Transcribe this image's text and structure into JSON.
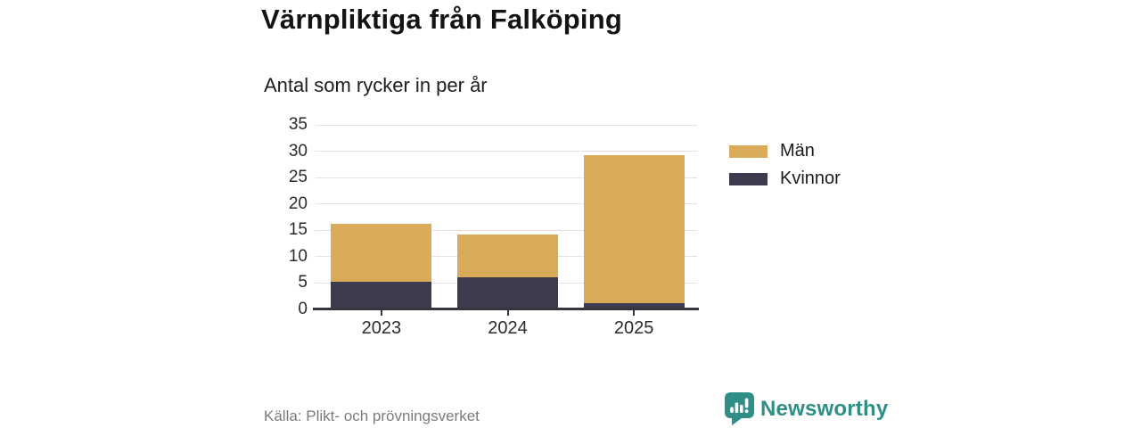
{
  "header": {
    "title": "Värnpliktiga från Falköping",
    "subtitle": "Antal som rycker in per år"
  },
  "footer": {
    "source": "Källa: Plikt- och prövningsverket",
    "brand_name": "Newsworthy",
    "brand_icon": "bar-chart-speech-bubble-icon"
  },
  "colors": {
    "men": "#D9AB58",
    "women": "#3D3C4E",
    "brand_teal": "#2F8E86",
    "gridline": "#E2E2E2",
    "axis": "#35343F",
    "text_dark": "#2B2B2B",
    "text_muted": "#7B7B7B"
  },
  "chart_data": {
    "type": "bar",
    "stacked": true,
    "title": "Värnpliktiga från Falköping",
    "subtitle": "Antal som rycker in per år",
    "categories": [
      "2023",
      "2024",
      "2025"
    ],
    "series": [
      {
        "name": "Kvinnor",
        "color": "#3D3C4E",
        "values": [
          5,
          6,
          1
        ]
      },
      {
        "name": "Män",
        "color": "#D9AB58",
        "values": [
          11,
          8,
          28
        ]
      }
    ],
    "totals": [
      16,
      14,
      29
    ],
    "legend": [
      {
        "label": "Män",
        "color": "#D9AB58"
      },
      {
        "label": "Kvinnor",
        "color": "#3D3C4E"
      }
    ],
    "legend_position": "right",
    "xlabel": "",
    "ylabel": "",
    "ylim": [
      0,
      35
    ],
    "yticks": [
      0,
      5,
      10,
      15,
      20,
      25,
      30,
      35
    ],
    "grid": true
  }
}
